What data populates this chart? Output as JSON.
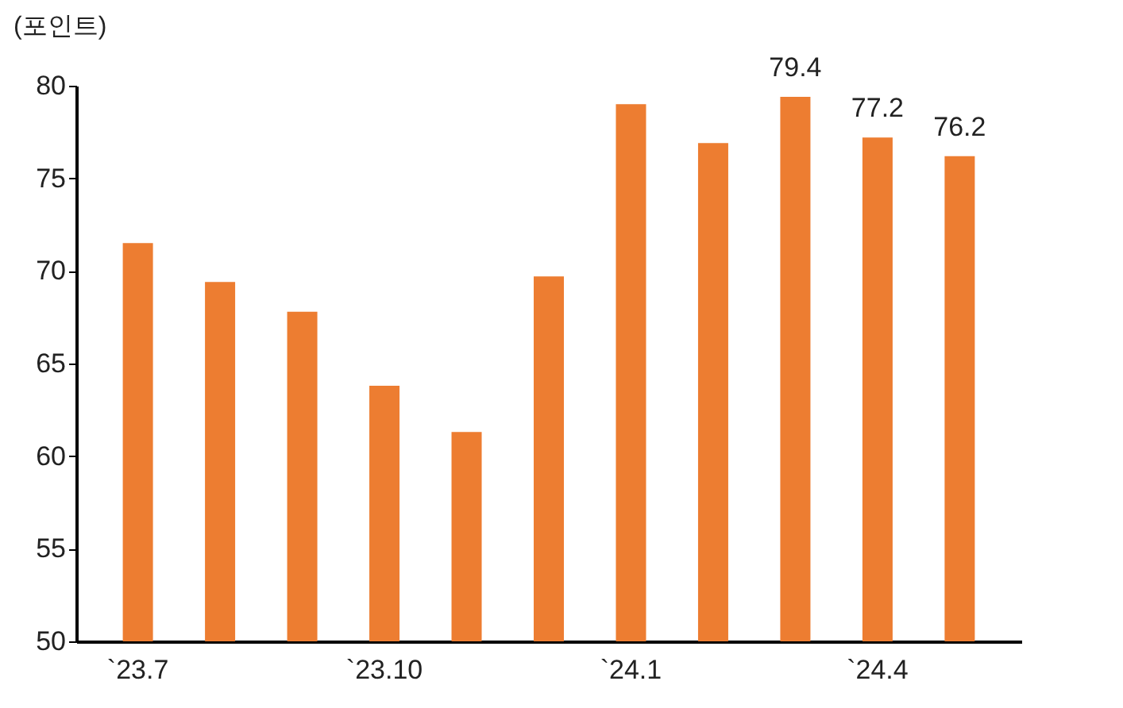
{
  "chart_data": {
    "type": "bar",
    "ylabel": "(포인트)",
    "categories": [
      "`23.7",
      null,
      null,
      "`23.10",
      null,
      null,
      "`24.1",
      null,
      null,
      "`24.4",
      null
    ],
    "values": [
      71.5,
      69.4,
      67.8,
      63.8,
      61.3,
      69.7,
      79.0,
      76.9,
      79.4,
      77.2,
      76.2
    ],
    "value_labels": [
      null,
      null,
      null,
      null,
      null,
      null,
      null,
      null,
      "79.4",
      "77.2",
      "76.2"
    ],
    "color": "#ed7d31",
    "ylim": [
      50,
      80
    ],
    "yticks": [
      50,
      55,
      60,
      65,
      70,
      75,
      80
    ],
    "grid": false
  }
}
